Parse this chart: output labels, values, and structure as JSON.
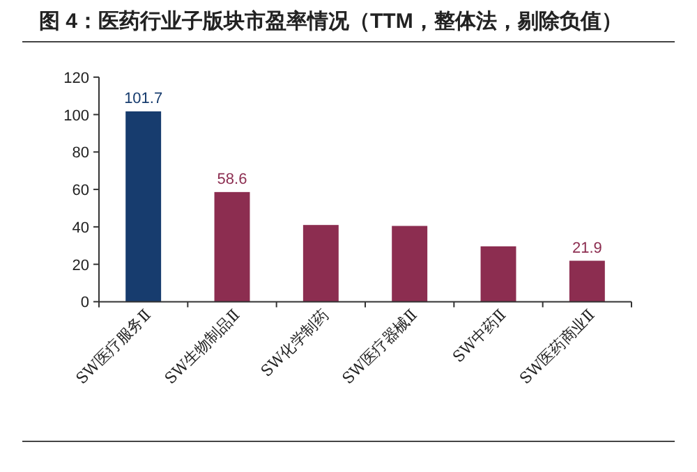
{
  "chart_data": {
    "type": "bar",
    "title": "图 4：医药行业子版块市盈率情况（TTM，整体法，剔除负值）",
    "categories": [
      "SW医疗服务Ⅱ",
      "SW生物制品Ⅱ",
      "SW化学制药",
      "SW医疗器械Ⅱ",
      "SW中药Ⅱ",
      "SW医药商业Ⅱ"
    ],
    "values": [
      101.7,
      58.6,
      41,
      40.5,
      29.6,
      21.9
    ],
    "value_labels": [
      "101.7",
      "58.6",
      null,
      null,
      null,
      "21.9"
    ],
    "colors": [
      "#173c6e",
      "#8c2d50",
      "#8c2d50",
      "#8c2d50",
      "#8c2d50",
      "#8c2d50"
    ],
    "ylim": [
      0,
      120
    ],
    "yticks": [
      0,
      20,
      40,
      60,
      80,
      100,
      120
    ]
  }
}
